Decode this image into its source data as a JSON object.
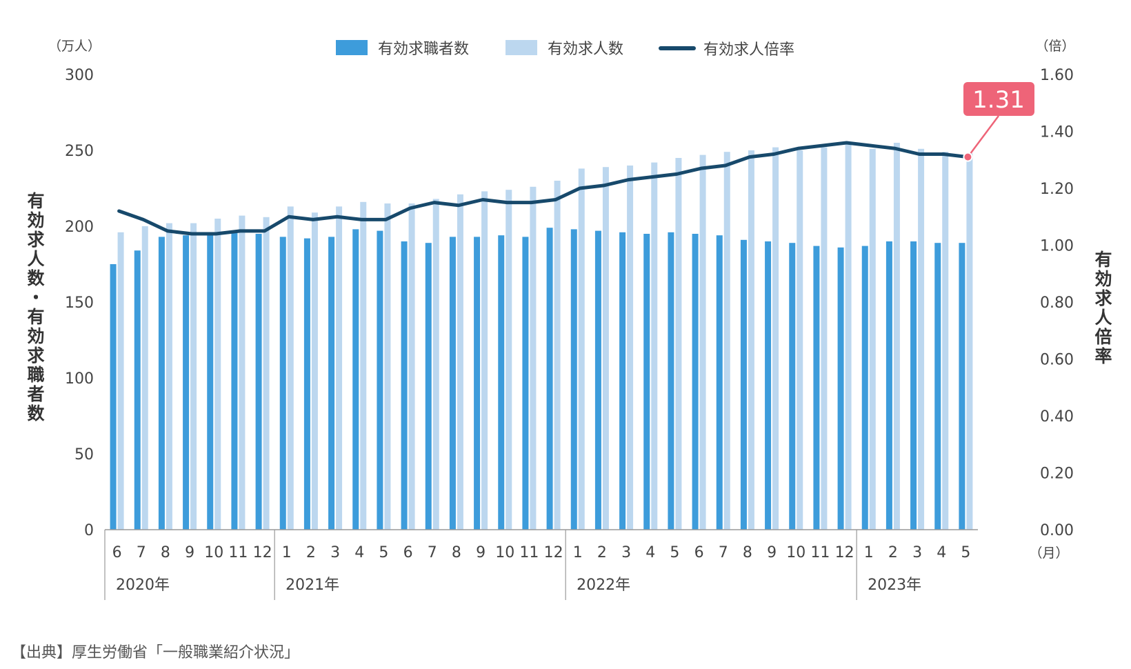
{
  "source_note": "【出典】厚生労働省「一般職業紹介状況」",
  "legend": {
    "seekers": "有効求職者数",
    "openings": "有効求人数",
    "ratio": "有効求人倍率"
  },
  "colors": {
    "seekers": "#3d9cdb",
    "openings": "#bcd7ef",
    "ratio": "#17496b",
    "callout": "#ee6478",
    "axis": "#999999"
  },
  "chart_data": {
    "type": "bar",
    "left_axis": {
      "unit": "（万人）",
      "title": "有効求人数・有効求職者数",
      "ticks": [
        "0",
        "50",
        "100",
        "150",
        "200",
        "250",
        "300"
      ],
      "range": [
        0,
        300
      ]
    },
    "right_axis": {
      "unit": "（倍）",
      "title": "有効求人倍率",
      "ticks": [
        "0.00",
        "0.20",
        "0.40",
        "0.60",
        "0.80",
        "1.00",
        "1.20",
        "1.40",
        "1.60"
      ],
      "range": [
        0,
        1.6
      ]
    },
    "x_unit": "（月）",
    "categories": [
      "6",
      "7",
      "8",
      "9",
      "10",
      "11",
      "12",
      "1",
      "2",
      "3",
      "4",
      "5",
      "6",
      "7",
      "8",
      "9",
      "10",
      "11",
      "12",
      "1",
      "2",
      "3",
      "4",
      "5",
      "6",
      "7",
      "8",
      "9",
      "10",
      "11",
      "12",
      "1",
      "2",
      "3",
      "4",
      "5"
    ],
    "years": [
      {
        "label": "2020年",
        "start": 0,
        "count": 7
      },
      {
        "label": "2021年",
        "start": 7,
        "count": 12
      },
      {
        "label": "2022年",
        "start": 19,
        "count": 12
      },
      {
        "label": "2023年",
        "start": 31,
        "count": 5
      }
    ],
    "series": [
      {
        "name": "有効求職者数",
        "type": "bar",
        "axis": "left",
        "values": [
          175,
          184,
          193,
          194,
          196,
          196,
          195,
          193,
          192,
          193,
          198,
          197,
          190,
          189,
          193,
          193,
          194,
          193,
          199,
          198,
          197,
          196,
          195,
          196,
          195,
          194,
          191,
          190,
          189,
          187,
          186,
          187,
          190,
          190,
          189,
          189
        ]
      },
      {
        "name": "有効求人数",
        "type": "bar",
        "axis": "left",
        "values": [
          196,
          200,
          202,
          202,
          205,
          207,
          206,
          213,
          209,
          213,
          216,
          215,
          215,
          218,
          221,
          223,
          224,
          226,
          230,
          238,
          239,
          240,
          242,
          245,
          247,
          249,
          250,
          252,
          250,
          252,
          254,
          251,
          255,
          251,
          249,
          248
        ]
      },
      {
        "name": "有効求人倍率",
        "type": "line",
        "axis": "right",
        "values": [
          1.12,
          1.09,
          1.05,
          1.04,
          1.04,
          1.05,
          1.05,
          1.1,
          1.09,
          1.1,
          1.09,
          1.09,
          1.13,
          1.15,
          1.14,
          1.16,
          1.15,
          1.15,
          1.16,
          1.2,
          1.21,
          1.23,
          1.24,
          1.25,
          1.27,
          1.28,
          1.31,
          1.32,
          1.34,
          1.35,
          1.36,
          1.35,
          1.34,
          1.32,
          1.32,
          1.31
        ]
      }
    ],
    "annotation": {
      "label": "1.31",
      "index": 35
    }
  }
}
